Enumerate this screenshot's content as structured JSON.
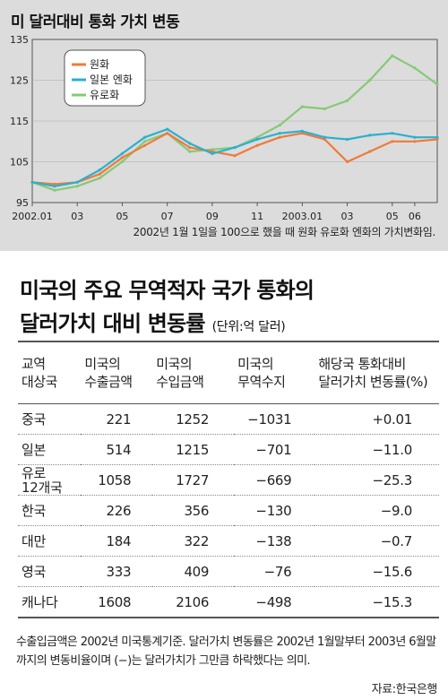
{
  "chart_title": "미 달러대비 통화 가치 변동",
  "chart_note": "2002년 1월 1일을 100으로 했을 때 원화 유로화 엔화의 가치변화임.",
  "colors": {
    "krw": "#f07a3a",
    "jpy": "#2ab0cf",
    "eur": "#88c878",
    "panel_bg": "#dcdcdc"
  },
  "chart_data": {
    "type": "line",
    "title": "미 달러대비 통화 가치 변동",
    "ylim": [
      95,
      135
    ],
    "yticks": [
      95,
      105,
      115,
      125,
      135
    ],
    "x_tick_labels": [
      "2002.01",
      "03",
      "05",
      "07",
      "09",
      "11",
      "2003.01",
      "03",
      "05",
      "06"
    ],
    "x": [
      "2002.01",
      "2002.02",
      "2002.03",
      "2002.04",
      "2002.05",
      "2002.06",
      "2002.07",
      "2002.08",
      "2002.09",
      "2002.10",
      "2002.11",
      "2002.12",
      "2003.01",
      "2003.02",
      "2003.03",
      "2003.04",
      "2003.05",
      "2003.06",
      "2003.07"
    ],
    "legend": [
      "원화",
      "일본 엔화",
      "유로화"
    ],
    "series": [
      {
        "name": "원화",
        "values": [
          100,
          99.5,
          100,
          102,
          106,
          109,
          112,
          108.5,
          107.5,
          106.5,
          109,
          111,
          112,
          110.5,
          105,
          107.5,
          110,
          110,
          110.5
        ]
      },
      {
        "name": "일본 엔화",
        "values": [
          100,
          99,
          100,
          103,
          107,
          111,
          113,
          109.5,
          107,
          108.5,
          110.5,
          112,
          112.5,
          111,
          110.5,
          111.5,
          112,
          111,
          111
        ]
      },
      {
        "name": "유로화",
        "values": [
          100,
          98,
          99,
          101,
          105,
          110,
          112,
          107.5,
          108,
          108.5,
          111,
          114,
          118.5,
          118,
          120,
          125,
          131,
          128,
          124
        ]
      }
    ]
  },
  "table_title_line1": "미국의 주요 무역적자 국가 통화의",
  "table_title_line2": "달러가치 대비 변동률",
  "table_unit": "(단위:억 달러)",
  "table_headers": [
    "교역\n대상국",
    "미국의\n수출금액",
    "미국의\n수입금액",
    "미국의\n무역수지",
    "해당국 통화대비\n달러가치 변동률(%)"
  ],
  "table_rows": [
    {
      "country": "중국",
      "export": "221",
      "import": "1252",
      "balance": "−1031",
      "change": "+0.01"
    },
    {
      "country": "일본",
      "export": "514",
      "import": "1215",
      "balance": "−701",
      "change": "−11.0"
    },
    {
      "country": "유로\n12개국",
      "export": "1058",
      "import": "1727",
      "balance": "−669",
      "change": "−25.3"
    },
    {
      "country": "한국",
      "export": "226",
      "import": "356",
      "balance": "−130",
      "change": "−9.0"
    },
    {
      "country": "대만",
      "export": "184",
      "import": "322",
      "balance": "−138",
      "change": "−0.7"
    },
    {
      "country": "영국",
      "export": "333",
      "import": "409",
      "balance": "−76",
      "change": "−15.6"
    },
    {
      "country": "캐나다",
      "export": "1608",
      "import": "2106",
      "balance": "−498",
      "change": "−15.3"
    }
  ],
  "footnote": "수출입금액은 2002년 미국통계기준. 달러가치 변동률은 2002년 1월말부터 2003년 6월말까지의 변동비율이며 (−)는 달러가치가 그만큼 하락했다는 의미.",
  "source": "자료:한국은행"
}
